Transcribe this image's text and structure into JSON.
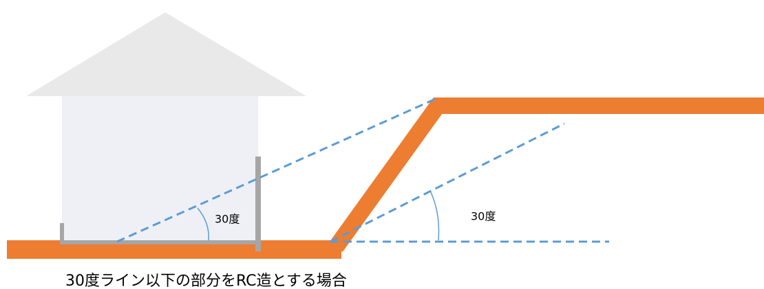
{
  "angle_labels": [
    "30度",
    "30度"
  ],
  "caption": "30度ライン以下の部分をRC造とする場合"
}
